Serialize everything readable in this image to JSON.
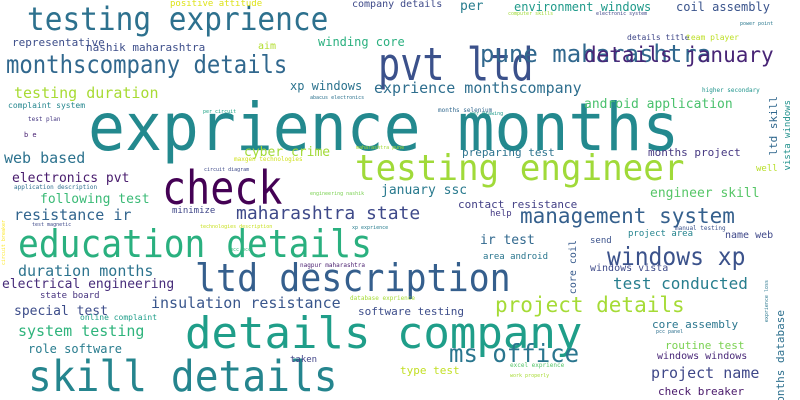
{
  "words": [
    {
      "text": "exprience months",
      "color": "#23898e"
    },
    {
      "text": "details company",
      "color": "#1f9e89"
    },
    {
      "text": "testing engineer",
      "color": "#a0da39"
    },
    {
      "text": "testing exprience",
      "color": "#2d718e"
    },
    {
      "text": "pvt ltd",
      "color": "#3b518b"
    },
    {
      "text": "check",
      "color": "#440154"
    },
    {
      "text": "education details",
      "color": "#2ab07f"
    },
    {
      "text": "skill details",
      "color": "#25858e"
    },
    {
      "text": "ltd description",
      "color": "#355f8d"
    },
    {
      "text": "monthscompany details",
      "color": "#31688e"
    },
    {
      "text": "pune maharashtra",
      "color": "#31688e"
    },
    {
      "text": "details january",
      "color": "#482576"
    },
    {
      "text": "management system",
      "color": "#35608d"
    },
    {
      "text": "windows xp",
      "color": "#3b528b"
    },
    {
      "text": "project details",
      "color": "#a5db36"
    },
    {
      "text": "maharashtra state",
      "color": "#3e4989"
    },
    {
      "text": "ms office",
      "color": "#2a768e"
    },
    {
      "text": "testing duration",
      "color": "#a8db34"
    },
    {
      "text": "exprience monthscompany",
      "color": "#2e6e8e"
    },
    {
      "text": "web based",
      "color": "#2c728e"
    },
    {
      "text": "resistance ir",
      "color": "#32658e"
    },
    {
      "text": "duration months",
      "color": "#2c738e"
    },
    {
      "text": "insulation resistance",
      "color": "#39568c"
    },
    {
      "text": "electrical engineering",
      "color": "#472c7a"
    },
    {
      "text": "system testing",
      "color": "#2fb47c"
    },
    {
      "text": "special test",
      "color": "#3d4d8a"
    },
    {
      "text": "role software",
      "color": "#287c8e"
    },
    {
      "text": "electronics pvt",
      "color": "#481b6d"
    },
    {
      "text": "following test",
      "color": "#3aba76"
    },
    {
      "text": "cyber crime",
      "color": "#a2da37"
    },
    {
      "text": "android application",
      "color": "#4ac16d"
    },
    {
      "text": "engineer skill",
      "color": "#56c667"
    },
    {
      "text": "test conducted",
      "color": "#277e8e"
    },
    {
      "text": "project name",
      "color": "#3f4889"
    },
    {
      "text": "ir test",
      "color": "#31688e"
    },
    {
      "text": "environment windows",
      "color": "#1f9a8a"
    },
    {
      "text": "coil assembly",
      "color": "#3a548c"
    },
    {
      "text": "winding core",
      "color": "#2ab07f"
    },
    {
      "text": "nashik maharashtra",
      "color": "#3d4e8a"
    },
    {
      "text": "representative",
      "color": "#3d4e8a"
    },
    {
      "text": "positive attitude",
      "color": "#dde318"
    },
    {
      "text": "company details",
      "color": "#3e4a89"
    },
    {
      "text": "per",
      "color": "#287d8e"
    },
    {
      "text": "xp windows",
      "color": "#2c738e"
    },
    {
      "text": "aim",
      "color": "#b2dd2d"
    },
    {
      "text": "preparing test",
      "color": "#2c738e"
    },
    {
      "text": "months project",
      "color": "#453781"
    },
    {
      "text": "january ssc",
      "color": "#297a8e"
    },
    {
      "text": "contact resistance",
      "color": "#423f85"
    },
    {
      "text": "software testing",
      "color": "#3d4d8a"
    },
    {
      "text": "routine test",
      "color": "#7ad151"
    },
    {
      "text": "core assembly",
      "color": "#2a768e"
    },
    {
      "text": "windows windows",
      "color": "#482677"
    },
    {
      "text": "check breaker",
      "color": "#481769"
    },
    {
      "text": "type test",
      "color": "#c2df23"
    },
    {
      "text": "months database",
      "color": "#2d708e"
    },
    {
      "text": "ltd skill",
      "color": "#31688e"
    },
    {
      "text": "vista windows",
      "color": "#21918c"
    },
    {
      "text": "name web",
      "color": "#3f4889"
    },
    {
      "text": "windows vista",
      "color": "#3e4a89"
    },
    {
      "text": "project area",
      "color": "#25848e"
    },
    {
      "text": "area android",
      "color": "#2a768e"
    },
    {
      "text": "core coil",
      "color": "#375a8c"
    },
    {
      "text": "send",
      "color": "#3b528b"
    },
    {
      "text": "help",
      "color": "#443a83"
    },
    {
      "text": "state board",
      "color": "#46327e"
    },
    {
      "text": "minimize",
      "color": "#3f4788"
    },
    {
      "text": "well",
      "color": "#b8de29"
    },
    {
      "text": "online complaint",
      "color": "#1f9e89"
    },
    {
      "text": "taken",
      "color": "#414487"
    },
    {
      "text": "testing duration",
      "color": "#a8db34"
    },
    {
      "text": "complaint system",
      "color": "#24868e"
    },
    {
      "text": "test plan",
      "color": "#453882"
    },
    {
      "text": "b e",
      "color": "#482173"
    },
    {
      "text": "months selenium",
      "color": "#31688e"
    },
    {
      "text": "abacus electronics",
      "color": "#2c728e"
    },
    {
      "text": "higher secondary",
      "color": "#1f948c"
    },
    {
      "text": "power point",
      "color": "#2a788e"
    },
    {
      "text": "computer skills",
      "color": "#a0da39"
    },
    {
      "text": "electronic system",
      "color": "#404688"
    },
    {
      "text": "details title",
      "color": "#3f4788"
    },
    {
      "text": "team player",
      "color": "#bddf26"
    },
    {
      "text": "per circuit",
      "color": "#20a386"
    },
    {
      "text": "per drawing",
      "color": "#1f9a8a"
    },
    {
      "text": "maharashtra pune",
      "color": "#a5db36"
    },
    {
      "text": "maxgen technologies",
      "color": "#d0e11c"
    },
    {
      "text": "circuit diagram",
      "color": "#3e4989"
    },
    {
      "text": "engineering nashik",
      "color": "#7ad151"
    },
    {
      "text": "application description",
      "color": "#2e6f8e"
    },
    {
      "text": "test magnetic",
      "color": "#3e4989"
    },
    {
      "text": "technologies description",
      "color": "#c8e020"
    },
    {
      "text": "xp exprience",
      "color": "#287d8e"
    },
    {
      "text": "manual testing",
      "color": "#3b528b"
    },
    {
      "text": "mcc pcc",
      "color": "#32b67a"
    },
    {
      "text": "nagpur maharashtra",
      "color": "#481c6e"
    },
    {
      "text": "database exprience",
      "color": "#a5db36"
    },
    {
      "text": "excel exprience",
      "color": "#54c568"
    },
    {
      "text": "work properly",
      "color": "#a8db34"
    },
    {
      "text": "pcc panel",
      "color": "#2d708e"
    },
    {
      "text": "exprience loss",
      "color": "#2a778e"
    },
    {
      "text": "circuit breaker",
      "color": "#fde725"
    }
  ]
}
